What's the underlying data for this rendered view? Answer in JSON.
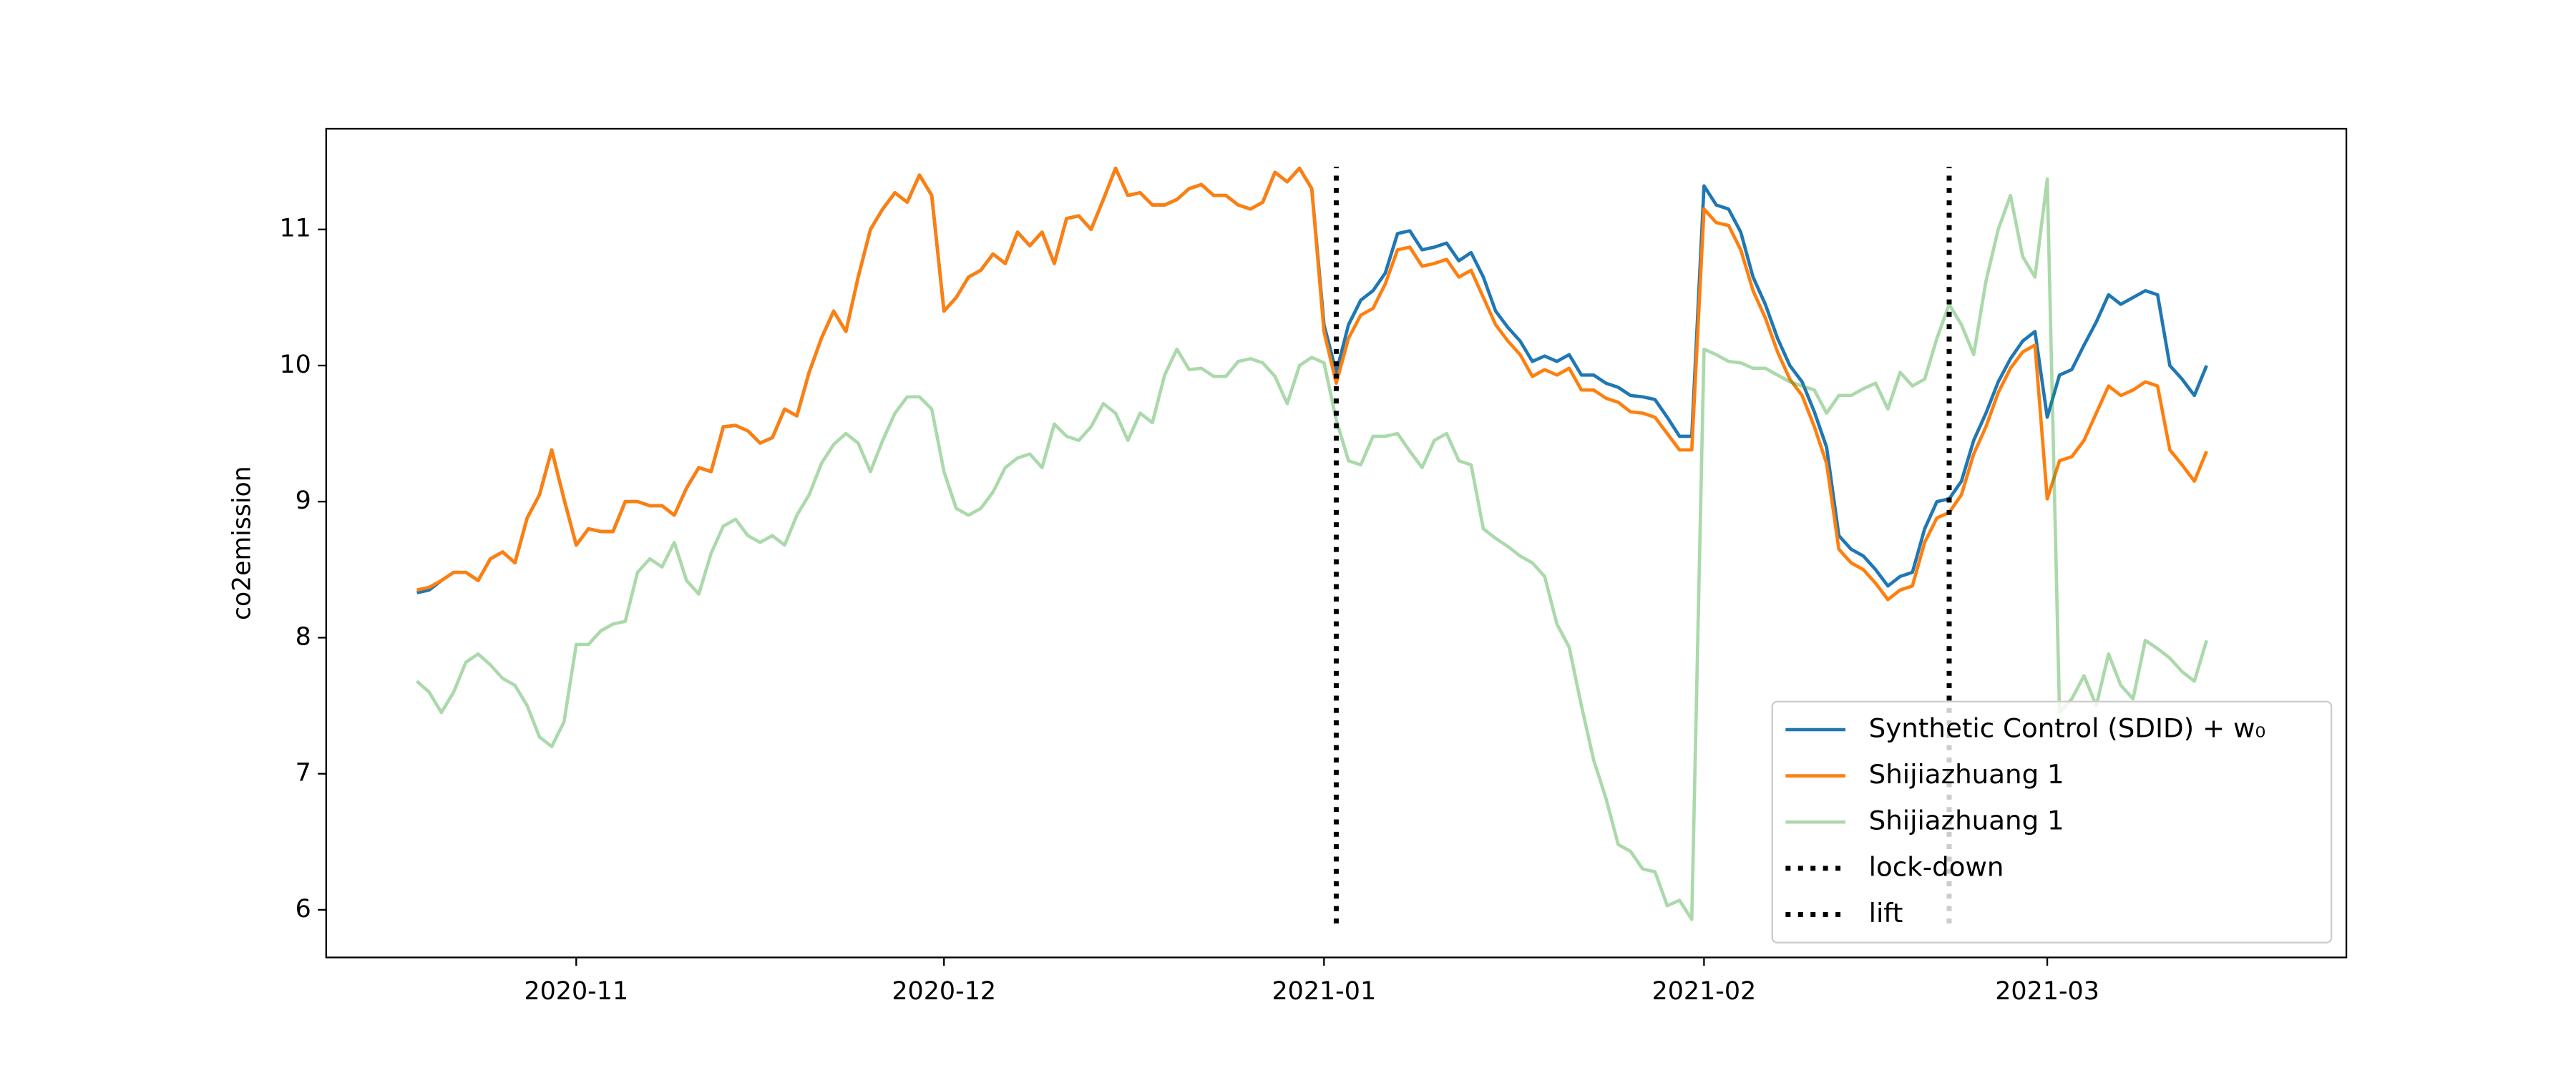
{
  "chart_data": {
    "type": "line",
    "y_label": "co2emission",
    "x": [
      0,
      1,
      2,
      3,
      4,
      5,
      6,
      7,
      8,
      9,
      10,
      11,
      12,
      13,
      14,
      15,
      16,
      17,
      18,
      19,
      20,
      21,
      22,
      23,
      24,
      25,
      26,
      27,
      28,
      29,
      30,
      31,
      32,
      33,
      34,
      35,
      36,
      37,
      38,
      39,
      40,
      41,
      42,
      43,
      44,
      45,
      46,
      47,
      48,
      49,
      50,
      51,
      52,
      53,
      54,
      55,
      56,
      57,
      58,
      59,
      60,
      61,
      62,
      63,
      64,
      65,
      66,
      67,
      68,
      69,
      70,
      71,
      72,
      73,
      74,
      75,
      76,
      77,
      78,
      79,
      80,
      81,
      82,
      83,
      84,
      85,
      86,
      87,
      88,
      89,
      90,
      91,
      92,
      93,
      94,
      95,
      96,
      97,
      98,
      99,
      100,
      101,
      102,
      103,
      104,
      105,
      106,
      107,
      108,
      109,
      110,
      111,
      112,
      113,
      114,
      115,
      116,
      117,
      118,
      119,
      120,
      121,
      122,
      123,
      124,
      125,
      126,
      127,
      128,
      129,
      130,
      131,
      132,
      133,
      134,
      135,
      136,
      137,
      138,
      139,
      140,
      141,
      142,
      143,
      144,
      145,
      146
    ],
    "series": [
      {
        "name": "Synthetic Control (SDID) + w₀",
        "color": "#1f77b4",
        "opacity": 1,
        "values": [
          8.33,
          8.35,
          8.42,
          8.48,
          8.48,
          8.42,
          8.58,
          8.63,
          8.55,
          8.88,
          9.05,
          9.38,
          9.02,
          8.68,
          8.8,
          8.78,
          8.78,
          9.0,
          9.0,
          8.97,
          8.97,
          8.9,
          9.1,
          9.25,
          9.22,
          9.55,
          9.56,
          9.52,
          9.43,
          9.47,
          9.68,
          9.63,
          9.95,
          10.2,
          10.4,
          10.25,
          10.65,
          11.0,
          11.15,
          11.27,
          11.2,
          11.4,
          11.25,
          10.4,
          10.5,
          10.65,
          10.7,
          10.82,
          10.75,
          10.98,
          10.88,
          10.98,
          10.75,
          11.08,
          11.1,
          11.0,
          11.22,
          11.45,
          11.25,
          11.27,
          11.18,
          11.18,
          11.22,
          11.3,
          11.33,
          11.25,
          11.25,
          11.18,
          11.15,
          11.2,
          11.42,
          11.35,
          11.45,
          11.3,
          10.3,
          9.95,
          10.3,
          10.48,
          10.55,
          10.68,
          10.97,
          10.99,
          10.85,
          10.87,
          10.9,
          10.77,
          10.83,
          10.65,
          10.4,
          10.28,
          10.18,
          10.03,
          10.07,
          10.03,
          10.08,
          9.93,
          9.93,
          9.87,
          9.84,
          9.78,
          9.77,
          9.75,
          9.62,
          9.48,
          9.48,
          11.32,
          11.18,
          11.15,
          10.98,
          10.65,
          10.45,
          10.2,
          10.0,
          9.88,
          9.66,
          9.4,
          8.75,
          8.65,
          8.6,
          8.5,
          8.38,
          8.45,
          8.48,
          8.8,
          9.0,
          9.02,
          9.15,
          9.45,
          9.65,
          9.88,
          10.05,
          10.18,
          10.25,
          9.62,
          9.93,
          9.97,
          10.15,
          10.32,
          10.52,
          10.45,
          10.5,
          10.55,
          10.52,
          10.0,
          9.9,
          9.78,
          10.0
        ]
      },
      {
        "name": "Shijiazhuang 1",
        "color": "#ff7f0e",
        "opacity": 1,
        "values": [
          8.35,
          8.37,
          8.42,
          8.48,
          8.48,
          8.42,
          8.58,
          8.63,
          8.55,
          8.88,
          9.05,
          9.38,
          9.02,
          8.68,
          8.8,
          8.78,
          8.78,
          9.0,
          9.0,
          8.97,
          8.97,
          8.9,
          9.1,
          9.25,
          9.22,
          9.55,
          9.56,
          9.52,
          9.43,
          9.47,
          9.68,
          9.63,
          9.95,
          10.2,
          10.4,
          10.25,
          10.65,
          11.0,
          11.15,
          11.27,
          11.2,
          11.4,
          11.25,
          10.4,
          10.5,
          10.65,
          10.7,
          10.82,
          10.75,
          10.98,
          10.88,
          10.98,
          10.75,
          11.08,
          11.1,
          11.0,
          11.22,
          11.45,
          11.25,
          11.27,
          11.18,
          11.18,
          11.22,
          11.3,
          11.33,
          11.25,
          11.25,
          11.18,
          11.15,
          11.2,
          11.42,
          11.35,
          11.45,
          11.3,
          10.25,
          9.87,
          10.2,
          10.37,
          10.42,
          10.6,
          10.85,
          10.87,
          10.73,
          10.75,
          10.78,
          10.65,
          10.7,
          10.5,
          10.3,
          10.18,
          10.08,
          9.92,
          9.97,
          9.93,
          9.98,
          9.82,
          9.82,
          9.76,
          9.73,
          9.66,
          9.65,
          9.62,
          9.5,
          9.38,
          9.38,
          11.15,
          11.05,
          11.03,
          10.85,
          10.55,
          10.35,
          10.1,
          9.9,
          9.78,
          9.55,
          9.28,
          8.65,
          8.55,
          8.5,
          8.4,
          8.28,
          8.35,
          8.38,
          8.7,
          8.88,
          8.92,
          9.05,
          9.35,
          9.55,
          9.8,
          9.98,
          10.1,
          10.15,
          9.02,
          9.3,
          9.33,
          9.45,
          9.65,
          9.85,
          9.78,
          9.82,
          9.88,
          9.85,
          9.38,
          9.27,
          9.15,
          9.37
        ]
      },
      {
        "name": "Shijiazhuang 1",
        "color": "#2ca02c",
        "opacity": 0.4,
        "values": [
          7.68,
          7.6,
          7.45,
          7.6,
          7.82,
          7.88,
          7.8,
          7.7,
          7.65,
          7.5,
          7.27,
          7.2,
          7.38,
          7.95,
          7.95,
          8.05,
          8.1,
          8.12,
          8.48,
          8.58,
          8.52,
          8.7,
          8.42,
          8.32,
          8.62,
          8.82,
          8.87,
          8.75,
          8.7,
          8.75,
          8.68,
          8.9,
          9.05,
          9.28,
          9.42,
          9.5,
          9.43,
          9.22,
          9.45,
          9.65,
          9.77,
          9.77,
          9.68,
          9.22,
          8.95,
          8.9,
          8.95,
          9.07,
          9.25,
          9.32,
          9.35,
          9.25,
          9.57,
          9.48,
          9.45,
          9.55,
          9.72,
          9.65,
          9.45,
          9.65,
          9.58,
          9.93,
          10.12,
          9.97,
          9.98,
          9.92,
          9.92,
          10.03,
          10.05,
          10.02,
          9.92,
          9.72,
          10.0,
          10.06,
          10.02,
          9.6,
          9.3,
          9.27,
          9.48,
          9.48,
          9.5,
          9.37,
          9.25,
          9.45,
          9.5,
          9.3,
          9.27,
          8.8,
          8.73,
          8.67,
          8.6,
          8.55,
          8.45,
          8.1,
          7.93,
          7.5,
          7.1,
          6.82,
          6.48,
          6.43,
          6.3,
          6.28,
          6.03,
          6.07,
          5.93,
          10.12,
          10.08,
          10.03,
          10.02,
          9.98,
          9.98,
          9.93,
          9.88,
          9.85,
          9.82,
          9.65,
          9.78,
          9.78,
          9.83,
          9.87,
          9.68,
          9.95,
          9.85,
          9.9,
          10.2,
          10.45,
          10.3,
          10.08,
          10.62,
          11.0,
          11.25,
          10.8,
          10.65,
          11.37,
          7.45,
          7.55,
          7.72,
          7.5,
          7.88,
          7.65,
          7.55,
          7.98,
          7.92,
          7.85,
          7.75,
          7.68,
          7.98
        ]
      }
    ],
    "vlines": [
      {
        "name": "lock-down",
        "x": 75,
        "ymin": 5.9,
        "ymax": 11.46,
        "color": "#000000"
      },
      {
        "name": "lift",
        "x": 125,
        "ymin": 5.9,
        "ymax": 11.46,
        "color": "#000000"
      }
    ],
    "xlim": [
      -7.4,
      157.4
    ],
    "xticks": [
      {
        "value": 13,
        "label": "2020-11"
      },
      {
        "value": 43,
        "label": "2020-12"
      },
      {
        "value": 74,
        "label": "2021-01"
      },
      {
        "value": 105,
        "label": "2021-02"
      },
      {
        "value": 133,
        "label": "2021-03"
      }
    ],
    "ylim": [
      5.65,
      11.74
    ],
    "yticks": [
      6,
      7,
      8,
      9,
      10,
      11
    ],
    "grid": false,
    "legend": "lower right"
  }
}
